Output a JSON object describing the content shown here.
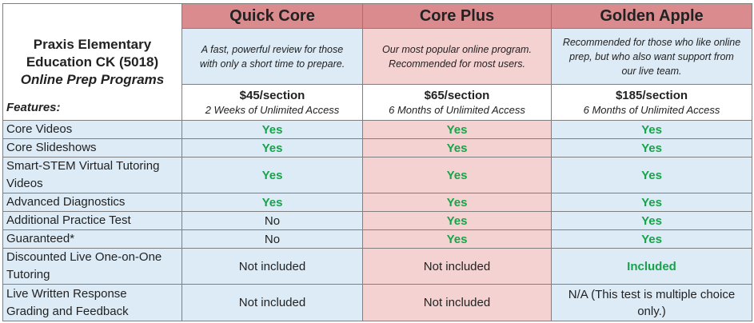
{
  "title": {
    "line1": "Praxis Elementary",
    "line2": "Education CK (5018)",
    "line3": "Online Prep Programs"
  },
  "programs": [
    {
      "name": "Quick Core",
      "description_lines": [
        "A fast, powerful review for those",
        "with only a short time to prepare."
      ],
      "price": "$45/section",
      "access": "2 Weeks of Unlimited Access"
    },
    {
      "name": "Core Plus",
      "description_lines": [
        "Our most popular online program.",
        "Recommended for most users."
      ],
      "price": "$65/section",
      "access": "6 Months of Unlimited Access"
    },
    {
      "name": "Golden Apple",
      "description_lines": [
        "Recommended for those who like online",
        "prep, but who also want support from",
        "our live team."
      ],
      "price": "$185/section",
      "access": "6 Months of Unlimited Access"
    }
  ],
  "features_label": "Features:",
  "features": [
    {
      "name_lines": [
        "Core Videos"
      ],
      "values": [
        "Yes",
        "Yes",
        "Yes"
      ]
    },
    {
      "name_lines": [
        "Core Slideshows"
      ],
      "values": [
        "Yes",
        "Yes",
        "Yes"
      ]
    },
    {
      "name_lines": [
        "Smart-STEM Virtual Tutoring",
        "Videos"
      ],
      "values": [
        "Yes",
        "Yes",
        "Yes"
      ]
    },
    {
      "name_lines": [
        "Advanced Diagnostics"
      ],
      "values": [
        "Yes",
        "Yes",
        "Yes"
      ]
    },
    {
      "name_lines": [
        "Additional Practice Test"
      ],
      "values": [
        "No",
        "Yes",
        "Yes"
      ]
    },
    {
      "name_lines": [
        "Guaranteed*"
      ],
      "values": [
        "No",
        "Yes",
        "Yes"
      ]
    },
    {
      "name_lines": [
        "Discounted Live One-on-One",
        "Tutoring"
      ],
      "values": [
        "Not included",
        "Not included",
        "Included"
      ]
    },
    {
      "name_lines": [
        "Live Written Response",
        "Grading and Feedback"
      ],
      "values": [
        "Not included",
        "Not included",
        "N/A (This test is multiple choice",
        "only.)"
      ]
    }
  ],
  "colors": {
    "title_red": "#b03234",
    "header_pink": "#d98b8e",
    "light_pink": "#f5d2d2",
    "light_blue": "#dcebf5",
    "yes_green": "#17a34a"
  }
}
